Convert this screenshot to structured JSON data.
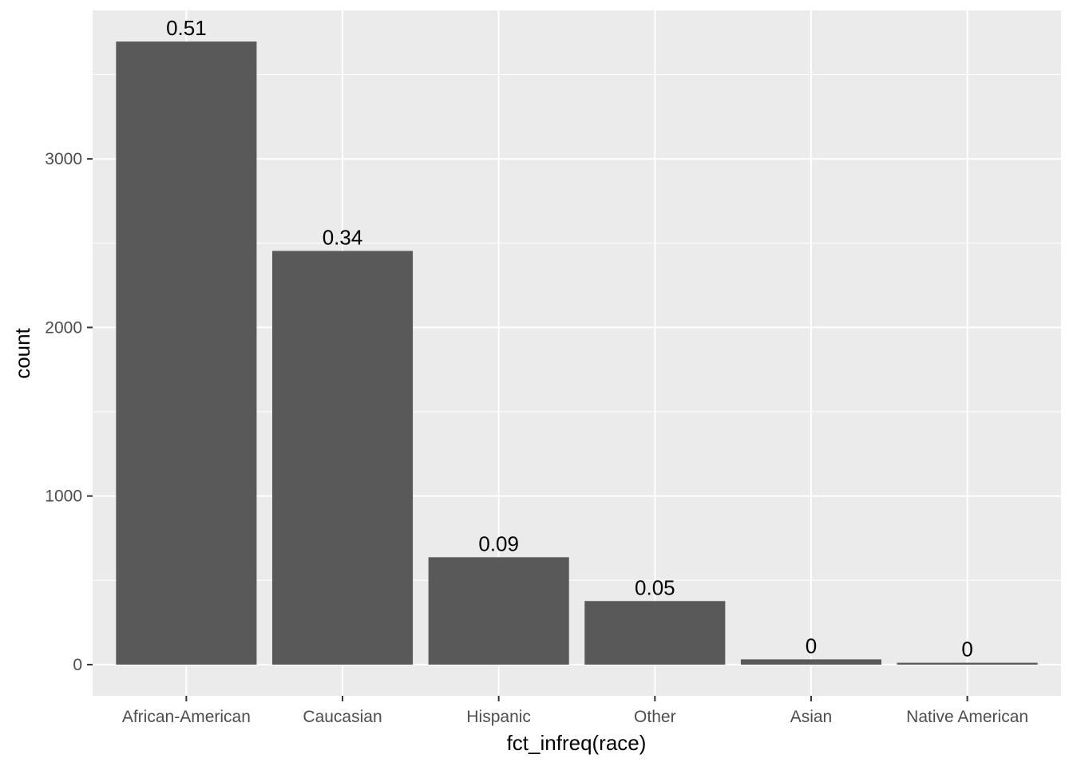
{
  "chart_data": {
    "type": "bar",
    "categories": [
      "African-American",
      "Caucasian",
      "Hispanic",
      "Other",
      "Asian",
      "Native American"
    ],
    "values": [
      3696,
      2454,
      637,
      377,
      31,
      11
    ],
    "data_labels": [
      "0.51",
      "0.34",
      "0.09",
      "0.05",
      "0",
      "0"
    ],
    "xlabel": "fct_infreq(race)",
    "ylabel": "count",
    "ylim": [
      -185,
      3881
    ],
    "y_ticks": [
      0,
      1000,
      2000,
      3000
    ],
    "y_tick_labels": [
      "0",
      "1000",
      "2000",
      "3000"
    ],
    "grid": true,
    "colors": {
      "panel_background": "#ebebeb",
      "grid_major": "#ffffff",
      "bar_fill": "#595959",
      "tick_text": "#4d4d4d",
      "tick_mark": "#333333"
    }
  }
}
